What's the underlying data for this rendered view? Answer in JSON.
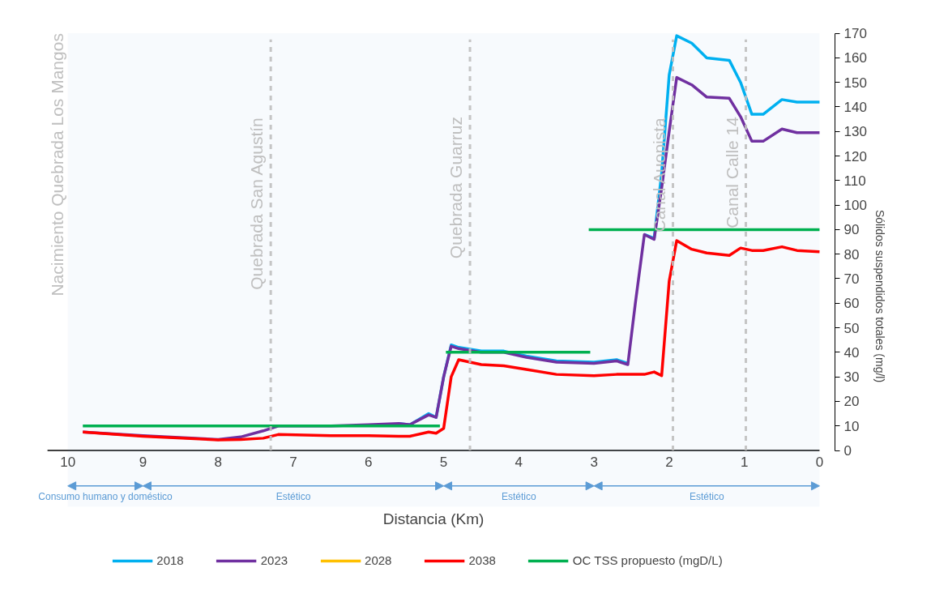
{
  "chart_data": {
    "type": "line",
    "xlabel": "Distancia (Km)",
    "ylabel": "Sólidos suspendidos totales (mg/l)",
    "x": [
      9.8,
      9.0,
      8.0,
      7.7,
      7.4,
      7.2,
      6.5,
      6.0,
      5.6,
      5.45,
      5.2,
      5.1,
      5.0,
      4.9,
      4.8,
      4.5,
      4.2,
      3.9,
      3.5,
      3.0,
      2.7,
      2.55,
      2.45,
      2.33,
      2.2,
      2.1,
      2.0,
      1.9,
      1.7,
      1.5,
      1.2,
      1.05,
      0.9,
      0.75,
      0.5,
      0.3,
      0.0
    ],
    "series": [
      {
        "name": "2018",
        "color": "#00b0f0",
        "values": [
          null,
          null,
          null,
          null,
          null,
          null,
          null,
          null,
          11,
          10.5,
          15,
          13.5,
          30,
          43,
          42,
          40.5,
          40.5,
          38.5,
          36.5,
          36,
          37,
          35.5,
          null,
          88,
          86.5,
          113,
          153,
          169,
          166,
          160,
          159,
          150,
          137,
          137,
          143,
          142,
          142
        ]
      },
      {
        "name": "2023",
        "color": "#7030a0",
        "values": [
          7.5,
          6,
          4.5,
          5.5,
          8,
          10,
          10,
          10.5,
          11,
          10.5,
          14.5,
          13.5,
          30,
          42.5,
          41.5,
          40,
          40,
          38,
          36,
          35.5,
          36.5,
          35,
          60,
          88,
          86,
          107,
          130,
          152,
          149,
          144,
          143.5,
          136,
          126,
          126,
          131,
          129.5,
          129.5
        ]
      },
      {
        "name": "2028",
        "color": "#ffc000",
        "values": [
          null,
          null,
          null,
          null,
          null,
          null,
          null,
          null,
          null,
          null,
          null,
          null,
          null,
          null,
          null,
          null,
          null,
          null,
          null,
          null,
          null,
          null,
          null,
          null,
          null,
          null,
          null,
          null,
          null,
          null,
          null,
          null,
          null,
          null,
          null,
          null,
          null
        ]
      },
      {
        "name": "2038",
        "color": "#ff0000",
        "values": [
          7.5,
          5.8,
          4.3,
          4.5,
          5,
          6.5,
          6,
          6,
          5.8,
          5.8,
          7.5,
          7,
          9,
          30,
          37,
          35,
          34.5,
          33,
          31,
          30.5,
          31,
          31,
          31,
          31,
          32,
          30.5,
          69,
          85.5,
          82,
          80.5,
          79.5,
          82.5,
          81.5,
          81.5,
          83,
          81.5,
          81
        ]
      },
      {
        "name": "OC TSS propuesto (mgD/L)",
        "color": "#00b050",
        "x": [
          9.8,
          5.05,
          5.0,
          4.97,
          3.05,
          3.06,
          3.07,
          0.0
        ],
        "values": [
          10,
          10,
          null,
          40,
          40,
          null,
          90,
          90
        ]
      }
    ],
    "xlim": [
      10.27,
      0
    ],
    "xticks": [
      10,
      9,
      8,
      7,
      6,
      5,
      4,
      3,
      2,
      1,
      0
    ],
    "ylim": [
      0,
      170
    ],
    "yticks": [
      0,
      10,
      20,
      30,
      40,
      50,
      60,
      70,
      80,
      90,
      100,
      110,
      120,
      130,
      140,
      150,
      160,
      170
    ],
    "ref_lines": [
      {
        "axis": "x",
        "value": 7.3,
        "label": "Quebrada San Agustín",
        "color": "#bfbfbf",
        "line_style": "dashed"
      },
      {
        "axis": "x",
        "value": 4.65,
        "label": "Quebrada Guarruz",
        "color": "#bfbfbf",
        "line_style": "dashed"
      },
      {
        "axis": "x",
        "value": 1.95,
        "label": "Canal Auopista",
        "color": "#bfbfbf",
        "line_style": "dashed"
      },
      {
        "axis": "x",
        "value": 0.98,
        "label": "Canal Calle 14",
        "color": "#bfbfbf",
        "line_style": "dashed"
      }
    ],
    "bands": [
      {
        "axis": "x",
        "from": 10,
        "to": 9,
        "label": "Consumo humano y doméstico",
        "color": "#5b9bd5"
      },
      {
        "axis": "x",
        "from": 9,
        "to": 5,
        "label": "Estético",
        "color": "#5b9bd5"
      },
      {
        "axis": "x",
        "from": 5,
        "to": 3,
        "label": "Estético",
        "color": "#5b9bd5"
      },
      {
        "axis": "x",
        "from": 3,
        "to": 0,
        "label": "Estético",
        "color": "#5b9bd5"
      }
    ],
    "annotations": [
      "Nacimiento Quebrada Los Mangos"
    ],
    "grid": false,
    "legend": "bottom",
    "marker": "none",
    "line_style": "solid"
  }
}
